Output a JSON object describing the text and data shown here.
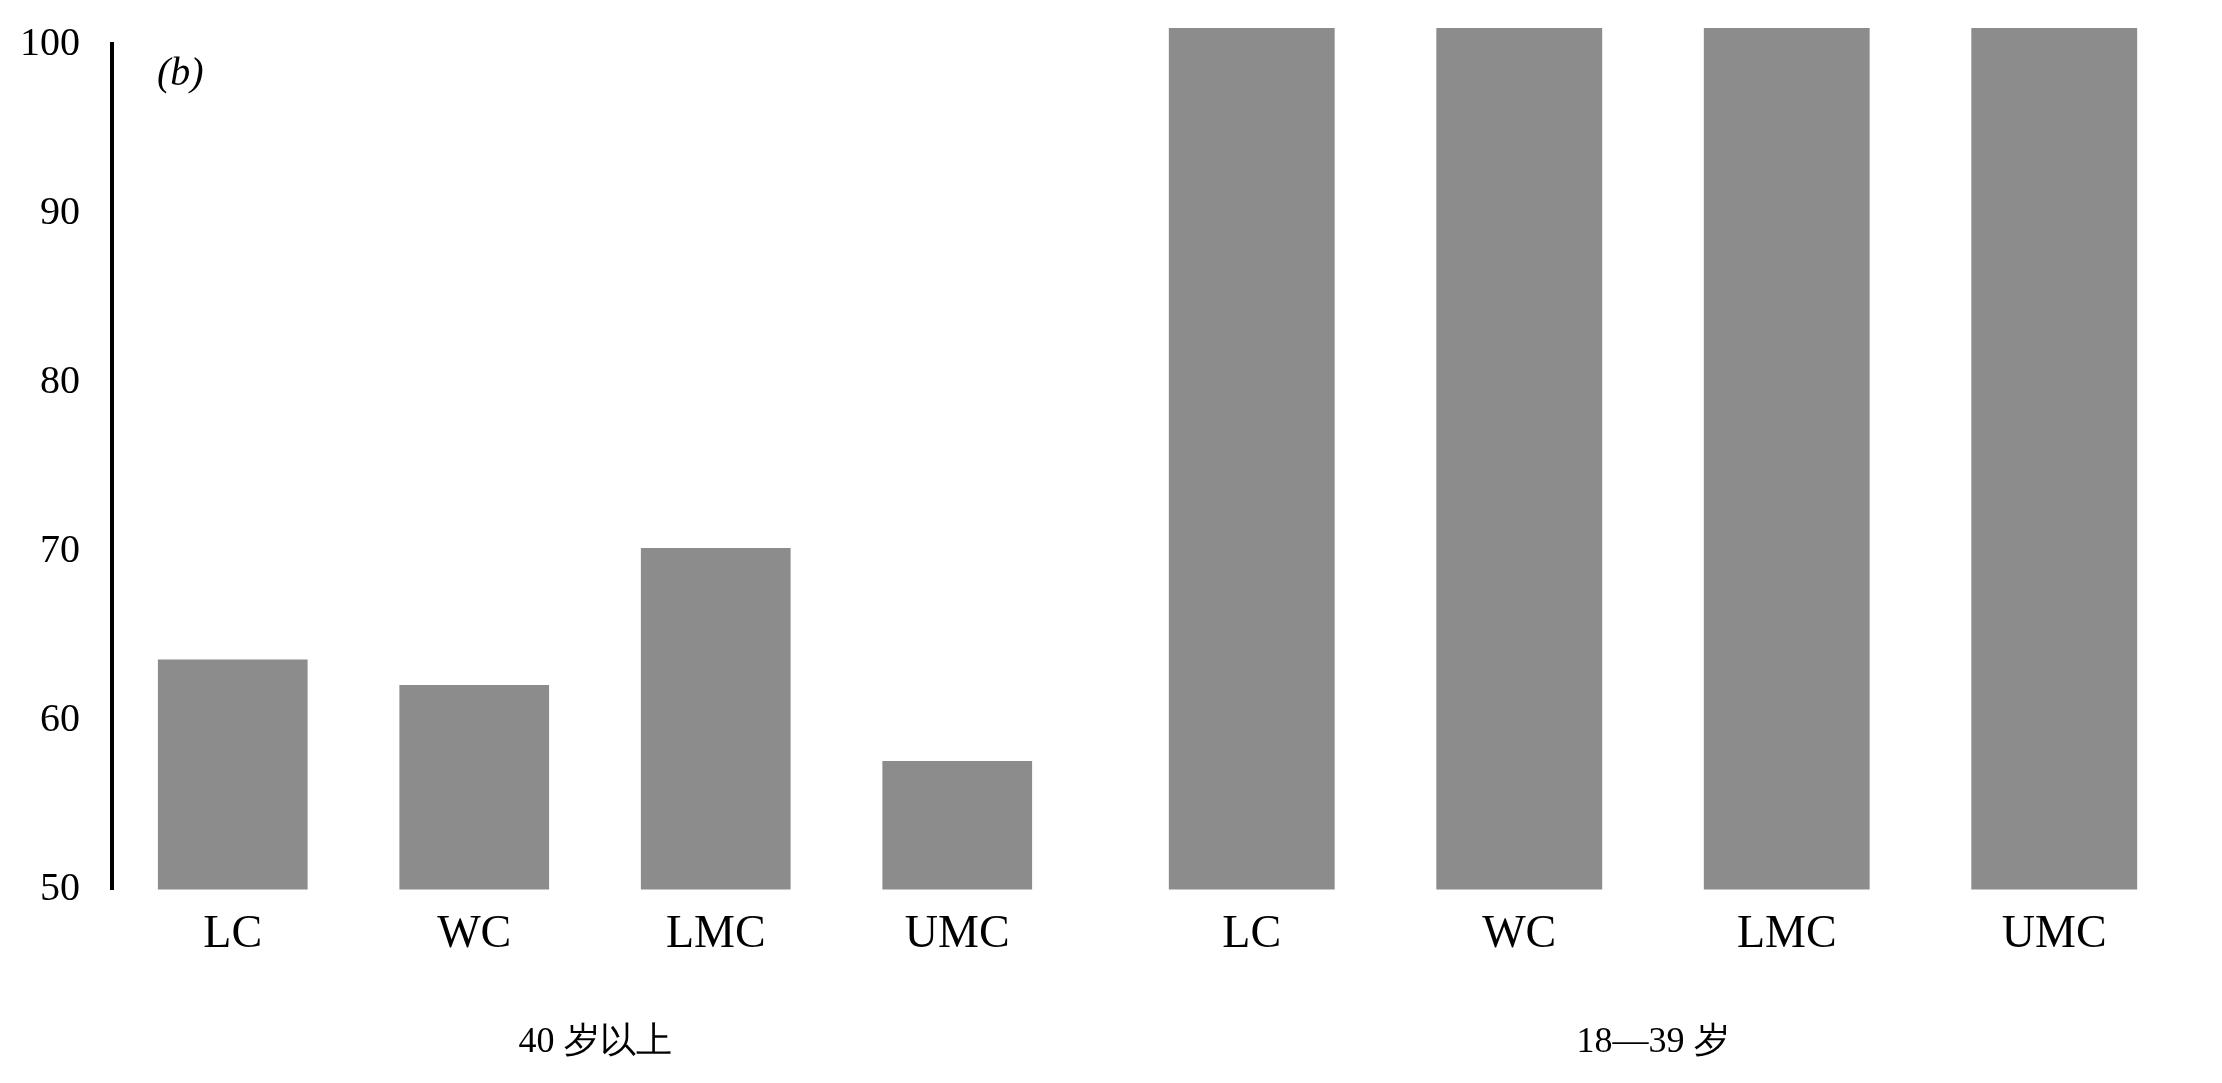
{
  "chart_data": [
    {
      "type": "bar",
      "annotations": [
        "(b)"
      ],
      "xlabel": "40 岁以上",
      "categories": [
        "LC",
        "WC",
        "LMC",
        "UMC"
      ],
      "values": [
        63.6,
        62.1,
        70.2,
        57.6
      ],
      "color": "#8c8c8c",
      "ylim": [
        50,
        100
      ],
      "yticks": [
        50,
        60,
        70,
        80,
        90,
        100
      ],
      "grid": false
    },
    {
      "type": "bar",
      "xlabel": "18—39 岁",
      "categories": [
        "LC",
        "WC",
        "LMC",
        "UMC"
      ],
      "values": [
        100,
        100,
        100,
        100
      ],
      "color": "#8c8c8c",
      "ylim": [
        50,
        100
      ],
      "tick_labels": "x",
      "grid": false
    }
  ]
}
